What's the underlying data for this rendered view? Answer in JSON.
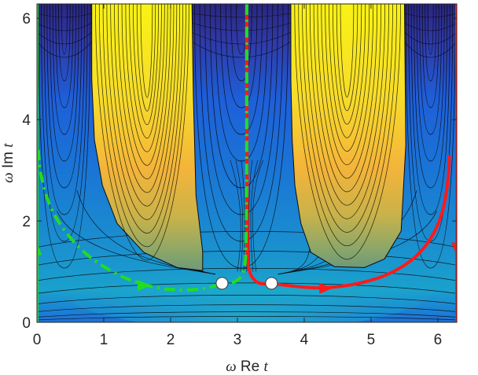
{
  "chart_data": {
    "type": "contour",
    "xlabel": {
      "prefix": "ω",
      "word": "Re",
      "var": "t"
    },
    "ylabel": {
      "prefix": "ω",
      "word": "Im",
      "var": "t"
    },
    "xlim": [
      0,
      6.283
    ],
    "ylim": [
      0,
      6.283
    ],
    "xticks": [
      0,
      1,
      2,
      3,
      4,
      5,
      6
    ],
    "yticks": [
      0,
      2,
      4,
      6
    ],
    "grid": false,
    "colormap": "parula",
    "saddle_points": [
      {
        "x": 2.77,
        "y": 0.77
      },
      {
        "x": 3.51,
        "y": 0.77
      }
    ],
    "contours": {
      "yellow_lobes": [
        {
          "center_x": 1.65,
          "outer_boundary": [
            [
              0.82,
              6.283
            ],
            [
              0.82,
              4.8
            ],
            [
              0.86,
              3.6
            ],
            [
              0.98,
              2.7
            ],
            [
              1.2,
              1.95
            ],
            [
              1.6,
              1.38
            ],
            [
              2.1,
              1.08
            ],
            [
              2.48,
              1.02
            ],
            [
              2.48,
              1.4
            ],
            [
              2.38,
              2.5
            ],
            [
              2.34,
              4.5
            ],
            [
              2.32,
              6.283
            ]
          ]
        },
        {
          "center_x": 4.64,
          "outer_boundary": [
            [
              3.8,
              6.283
            ],
            [
              3.8,
              4.8
            ],
            [
              3.82,
              3.6
            ],
            [
              3.86,
              2.7
            ],
            [
              3.95,
              1.95
            ],
            [
              4.1,
              1.38
            ],
            [
              4.45,
              1.1
            ],
            [
              4.9,
              1.08
            ],
            [
              5.2,
              1.25
            ],
            [
              5.45,
              1.8
            ],
            [
              5.52,
              3.5
            ],
            [
              5.5,
              6.283
            ]
          ]
        }
      ]
    },
    "paths": [
      {
        "color": "#ff1a1a",
        "style": "solid",
        "points": [
          [
            3.14,
            6.283
          ],
          [
            3.14,
            3.0
          ],
          [
            3.15,
            1.5
          ],
          [
            3.16,
            1.0
          ],
          [
            3.3,
            0.75
          ],
          [
            3.51,
            0.77
          ],
          [
            3.9,
            0.7
          ],
          [
            4.3,
            0.67
          ],
          [
            4.8,
            0.75
          ],
          [
            5.3,
            0.95
          ],
          [
            5.75,
            1.35
          ],
          [
            6.05,
            2.0
          ],
          [
            6.16,
            2.8
          ],
          [
            6.17,
            3.3
          ]
        ],
        "arrows": [
          {
            "at": [
              4.32,
              0.67
            ],
            "dir": "right"
          }
        ]
      },
      {
        "color": "#ff1a1a",
        "style": "solid",
        "points": [
          [
            6.283,
            6.283
          ],
          [
            6.283,
            0
          ]
        ],
        "arrows": [
          {
            "at": [
              6.283,
              1.45
            ],
            "dir": "down"
          }
        ]
      },
      {
        "color": "#22dd22",
        "style": "dash-dot",
        "points": [
          [
            3.14,
            6.283
          ],
          [
            3.14,
            3.0
          ],
          [
            3.13,
            1.5
          ],
          [
            3.11,
            1.0
          ],
          [
            2.98,
            0.78
          ],
          [
            2.77,
            0.77
          ],
          [
            2.5,
            0.65
          ],
          [
            2.0,
            0.63
          ],
          [
            1.55,
            0.75
          ],
          [
            1.1,
            1.0
          ],
          [
            0.62,
            1.45
          ],
          [
            0.22,
            2.15
          ],
          [
            0.05,
            2.9
          ],
          [
            0.02,
            3.4
          ]
        ],
        "arrows": [
          {
            "at": [
              1.6,
              0.73
            ],
            "dir": "right"
          }
        ]
      },
      {
        "color": "#22dd22",
        "style": "solid",
        "points": [
          [
            0,
            0
          ],
          [
            0,
            6.283
          ]
        ],
        "arrows": [
          {
            "at": [
              0,
              1.45
            ],
            "dir": "up"
          }
        ]
      }
    ]
  }
}
